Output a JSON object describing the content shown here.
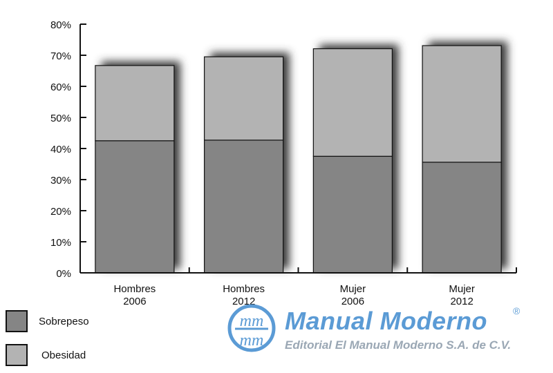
{
  "chart_data": {
    "type": "bar",
    "stacked": true,
    "categories": [
      [
        "Hombres",
        "2006"
      ],
      [
        "Hombres",
        "2012"
      ],
      [
        "Mujer",
        "2006"
      ],
      [
        "Mujer",
        "2012"
      ]
    ],
    "series": [
      {
        "name": "Sobrepeso",
        "values": [
          42.5,
          42.7,
          37.5,
          35.6
        ],
        "color": "#858585"
      },
      {
        "name": "Obesidad",
        "values": [
          24.2,
          26.8,
          34.6,
          37.5
        ],
        "color": "#b3b3b3"
      }
    ],
    "ylim": [
      0,
      80
    ],
    "yticks": [
      "0%",
      "10%",
      "20%",
      "30%",
      "40%",
      "50%",
      "60%",
      "70%",
      "80%"
    ],
    "grid": false,
    "legend_position": "bottom-left"
  },
  "legend": [
    {
      "label": "Sobrepeso",
      "color": "#858585"
    },
    {
      "label": "Obesidad",
      "color": "#b3b3b3"
    }
  ],
  "watermark": {
    "logo_text": "mm",
    "title": "Manual Moderno",
    "registered": "®",
    "subtitle": "Editorial El Manual Moderno S.A. de C.V."
  }
}
